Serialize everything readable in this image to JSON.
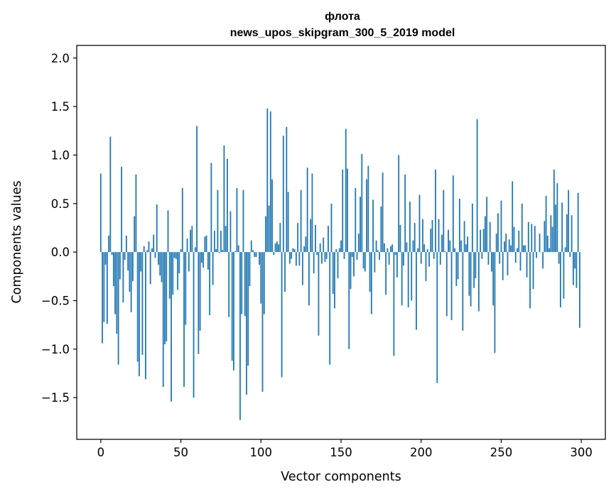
{
  "chart_data": {
    "type": "bar",
    "title": "флота",
    "subtitle": "news_upos_skipgram_300_5_2019 model",
    "xlabel": "Vector components",
    "ylabel": "Components values",
    "xlim": [
      -15,
      315
    ],
    "ylim": [
      -1.93,
      2.13
    ],
    "xticks": [
      0,
      50,
      100,
      150,
      200,
      250,
      300
    ],
    "xtick_labels": [
      "0",
      "50",
      "100",
      "150",
      "200",
      "250",
      "300"
    ],
    "yticks": [
      -1.5,
      -1.0,
      -0.5,
      0.0,
      0.5,
      1.0,
      1.5,
      2.0
    ],
    "ytick_labels": [
      "−1.5",
      "−1.0",
      "−0.5",
      "0.0",
      "0.5",
      "1.0",
      "1.5",
      "2.0"
    ],
    "grid": false,
    "bar_color": "#1f77b4",
    "x": "0..299 (index of each value)",
    "values": [
      0.81,
      -0.94,
      -0.72,
      -0.13,
      -0.74,
      0.17,
      1.19,
      -0.03,
      -0.35,
      -0.64,
      -0.84,
      -1.16,
      -0.28,
      0.88,
      -0.52,
      -0.08,
      0.17,
      -0.19,
      -0.41,
      -0.62,
      -0.3,
      0.37,
      0.8,
      -1.13,
      -1.28,
      -0.2,
      -1.06,
      0.06,
      -1.31,
      0.02,
      0.11,
      -0.33,
      0.04,
      0.18,
      -0.06,
      0.49,
      -0.13,
      -0.24,
      -0.31,
      -1.39,
      -0.95,
      -0.92,
      0.43,
      -0.48,
      -1.54,
      -0.44,
      -0.06,
      -0.07,
      -0.39,
      -0.22,
      0.03,
      0.66,
      -1.39,
      -0.75,
      0.14,
      -0.2,
      0.23,
      0.27,
      -1.5,
      0.05,
      1.3,
      -1.05,
      -0.81,
      -0.11,
      -0.16,
      0.16,
      0.17,
      -0.18,
      -0.65,
      0.92,
      -0.34,
      0.22,
      0.03,
      0.64,
      -0.01,
      0.22,
      0.02,
      1.1,
      0.27,
      0.96,
      -0.67,
      0.42,
      -1.12,
      -1.22,
      0.01,
      0.66,
      0.07,
      -1.73,
      -0.64,
      0.64,
      -0.66,
      -1.47,
      -1.17,
      -0.35,
      0.12,
      0.02,
      -0.05,
      -0.05,
      0.0,
      -0.13,
      -0.53,
      -1.44,
      -0.64,
      0.37,
      1.48,
      0.48,
      1.45,
      0.75,
      -0.03,
      0.09,
      0.11,
      0.08,
      0.3,
      -1.29,
      1.2,
      -0.41,
      1.29,
      0.62,
      -0.12,
      -0.07,
      0.04,
      0.03,
      -0.14,
      0.3,
      -0.14,
      0.64,
      -0.34,
      0.06,
      0.16,
      0.87,
      -0.55,
      0.34,
      0.81,
      -0.22,
      0.28,
      -0.03,
      -0.86,
      0.09,
      -0.12,
      0.15,
      -0.1,
      -0.07,
      0.27,
      -1.16,
      0.5,
      -0.43,
      -0.58,
      0.03,
      -0.27,
      0.04,
      0.12,
      0.85,
      -0.07,
      1.27,
      0.86,
      -1.0,
      -0.38,
      -0.05,
      -0.25,
      0.66,
      -0.08,
      0.19,
      0.57,
      1.01,
      -0.17,
      -0.2,
      0.75,
      0.89,
      -0.41,
      -0.64,
      0.54,
      -0.21,
      0.12,
      0.02,
      -0.08,
      0.47,
      0.82,
      0.09,
      -0.44,
      0.04,
      -0.13,
      0.06,
      0.08,
      -1.07,
      -0.03,
      -0.26,
      1.0,
      0.28,
      -0.55,
      -0.14,
      0.8,
      0.1,
      -0.57,
      0.52,
      -0.5,
      0.12,
      0.3,
      -0.8,
      0.04,
      0.59,
      -0.12,
      0.34,
      0.08,
      -0.3,
      0.03,
      -0.15,
      0.24,
      0.33,
      -0.07,
      0.85,
      -1.35,
      0.34,
      -0.13,
      0.18,
      0.64,
      0.01,
      -0.66,
      0.23,
      0.12,
      -0.7,
      0.79,
      0.04,
      -0.35,
      -0.28,
      0.55,
      0.12,
      -0.81,
      0.32,
      0.08,
      0.16,
      -0.45,
      -0.56,
      0.5,
      -0.37,
      -0.27,
      1.37,
      -0.61,
      0.23,
      -0.07,
      0.24,
      0.37,
      0.57,
      -0.13,
      0.31,
      -0.2,
      -0.55,
      -1.04,
      0.19,
      0.4,
      -0.12,
      0.53,
      -0.29,
      0.11,
      0.19,
      -0.24,
      0.13,
      0.07,
      0.73,
      0.26,
      -0.11,
      0.04,
      0.22,
      -0.19,
      0.5,
      0.07,
      0.07,
      -0.26,
      0.31,
      -0.58,
      0.29,
      -0.38,
      0.27,
      -0.06,
      0.0,
      0.19,
      0.0,
      -0.17,
      0.32,
      0.58,
      0.17,
      0.04,
      0.38,
      0.26,
      0.85,
      0.49,
      0.71,
      -0.12,
      -0.57,
      0.51,
      -0.48,
      0.05,
      0.39,
      0.64,
      -0.05,
      0.38,
      -0.34,
      -0.17,
      -0.37,
      0.61,
      -0.78
    ]
  }
}
